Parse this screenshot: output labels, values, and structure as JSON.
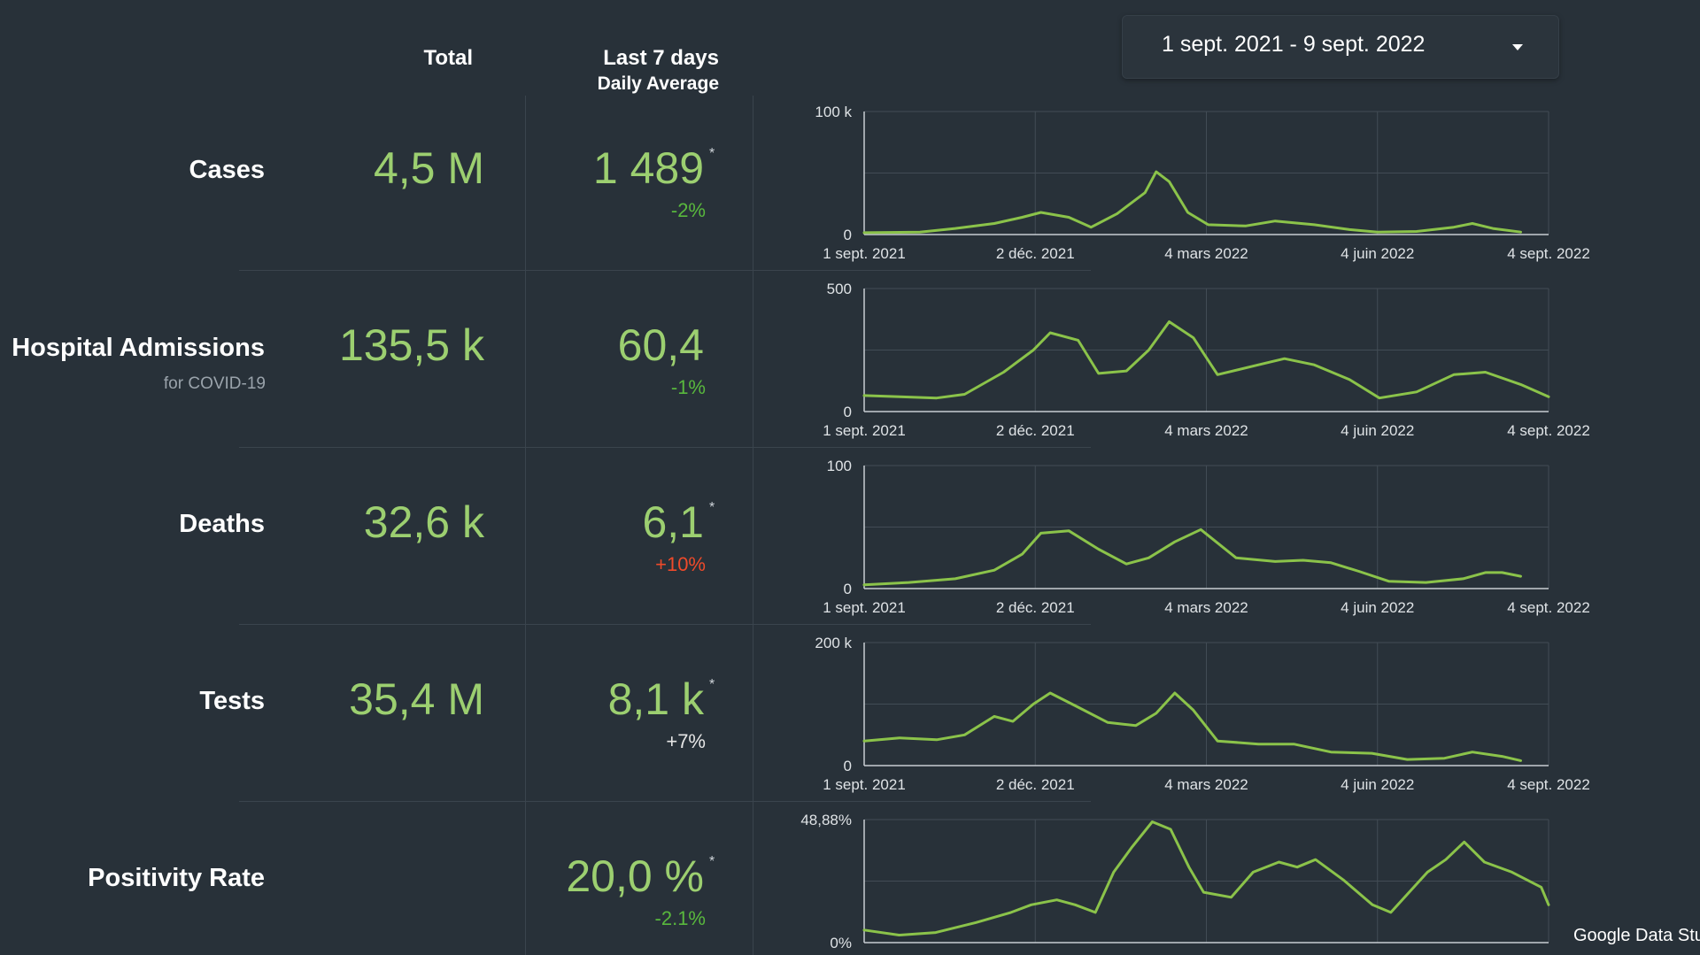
{
  "date_range": {
    "label": "1 sept. 2021 - 9 sept. 2022"
  },
  "columns": {
    "total": "Total",
    "last7": "Last 7 days",
    "last7_sub": "Daily Average"
  },
  "rows": [
    {
      "label": "Cases",
      "sublabel": "",
      "total": "4,5 M",
      "avg": "1 489",
      "star": "*",
      "change": "-2%",
      "change_color": "#59b83d"
    },
    {
      "label": "Hospital Admissions",
      "sublabel": "for COVID-19",
      "total": "135,5 k",
      "avg": "60,4",
      "star": "",
      "change": "-1%",
      "change_color": "#59b83d"
    },
    {
      "label": "Deaths",
      "sublabel": "",
      "total": "32,6 k",
      "avg": "6,1",
      "star": "*",
      "change": "+10%",
      "change_color": "#ef4a2a"
    },
    {
      "label": "Tests",
      "sublabel": "",
      "total": "35,4 M",
      "avg": "8,1 k",
      "star": "*",
      "change": "+7%",
      "change_color": "#e6e6e6"
    },
    {
      "label": "Positivity Rate",
      "sublabel": "",
      "total": "",
      "avg": "20,0 %",
      "star": "*",
      "change": "-2.1%",
      "change_color": "#59b83d"
    }
  ],
  "footer": {
    "brand": "Google Data Stu"
  },
  "chart_data": [
    {
      "type": "line",
      "series_name": "Cases",
      "color": "#8bc34a",
      "x_ticks": [
        "1 sept. 2021",
        "2 déc. 2021",
        "4 mars 2022",
        "4 juin 2022",
        "4 sept. 2022"
      ],
      "y_ticks": [
        "0",
        "100 k"
      ],
      "ylim": [
        0,
        100000
      ],
      "xlim": [
        "2021-09-01",
        "2022-09-04"
      ],
      "x": [
        "2021-09-01",
        "2021-10-01",
        "2021-10-20",
        "2021-11-10",
        "2021-11-25",
        "2021-12-05",
        "2021-12-20",
        "2022-01-01",
        "2022-01-15",
        "2022-01-30",
        "2022-02-05",
        "2022-02-12",
        "2022-02-22",
        "2022-03-05",
        "2022-03-25",
        "2022-04-10",
        "2022-05-01",
        "2022-05-20",
        "2022-06-04",
        "2022-06-25",
        "2022-07-15",
        "2022-07-25",
        "2022-08-05",
        "2022-08-20"
      ],
      "y": [
        1500,
        2000,
        5000,
        9000,
        14000,
        18000,
        14000,
        6000,
        17000,
        34000,
        51000,
        43000,
        18000,
        8000,
        7000,
        11000,
        8000,
        4000,
        2000,
        2500,
        6000,
        9000,
        5000,
        2000
      ]
    },
    {
      "type": "line",
      "series_name": "Hospital Admissions",
      "color": "#8bc34a",
      "x_ticks": [
        "1 sept. 2021",
        "2 déc. 2021",
        "4 mars 2022",
        "4 juin 2022",
        "4 sept. 2022"
      ],
      "y_ticks": [
        "0",
        "500"
      ],
      "ylim": [
        0,
        500
      ],
      "xlim": [
        "2021-09-01",
        "2022-09-04"
      ],
      "x": [
        "2021-09-01",
        "2021-09-20",
        "2021-10-10",
        "2021-10-25",
        "2021-11-15",
        "2021-12-01",
        "2021-12-10",
        "2021-12-25",
        "2022-01-05",
        "2022-01-20",
        "2022-02-01",
        "2022-02-12",
        "2022-02-25",
        "2022-03-10",
        "2022-04-01",
        "2022-04-15",
        "2022-05-01",
        "2022-05-20",
        "2022-06-05",
        "2022-06-25",
        "2022-07-15",
        "2022-08-01",
        "2022-08-20",
        "2022-09-04"
      ],
      "y": [
        65,
        60,
        55,
        70,
        160,
        250,
        320,
        290,
        155,
        165,
        250,
        365,
        300,
        150,
        190,
        215,
        190,
        130,
        55,
        80,
        150,
        160,
        110,
        60
      ]
    },
    {
      "type": "line",
      "series_name": "Deaths",
      "color": "#8bc34a",
      "x_ticks": [
        "1 sept. 2021",
        "2 déc. 2021",
        "4 mars 2022",
        "4 juin 2022",
        "4 sept. 2022"
      ],
      "y_ticks": [
        "0",
        "100"
      ],
      "ylim": [
        0,
        100
      ],
      "xlim": [
        "2021-09-01",
        "2022-09-04"
      ],
      "x": [
        "2021-09-01",
        "2021-09-25",
        "2021-10-20",
        "2021-11-10",
        "2021-11-25",
        "2021-12-05",
        "2021-12-20",
        "2022-01-05",
        "2022-01-20",
        "2022-02-01",
        "2022-02-15",
        "2022-03-01",
        "2022-03-20",
        "2022-04-10",
        "2022-04-25",
        "2022-05-10",
        "2022-05-25",
        "2022-06-10",
        "2022-06-30",
        "2022-07-20",
        "2022-08-01",
        "2022-08-10",
        "2022-08-20"
      ],
      "y": [
        3,
        5,
        8,
        15,
        28,
        45,
        47,
        32,
        20,
        25,
        38,
        48,
        25,
        22,
        23,
        21,
        14,
        6,
        5,
        8,
        13,
        13,
        10
      ]
    },
    {
      "type": "line",
      "series_name": "Tests",
      "color": "#8bc34a",
      "x_ticks": [
        "1 sept. 2021",
        "2 déc. 2021",
        "4 mars 2022",
        "4 juin 2022",
        "4 sept. 2022"
      ],
      "y_ticks": [
        "0",
        "200 k"
      ],
      "ylim": [
        0,
        200000
      ],
      "xlim": [
        "2021-09-01",
        "2022-09-04"
      ],
      "x": [
        "2021-09-01",
        "2021-09-20",
        "2021-10-10",
        "2021-10-25",
        "2021-11-10",
        "2021-11-20",
        "2021-12-01",
        "2021-12-10",
        "2021-12-25",
        "2022-01-10",
        "2022-01-25",
        "2022-02-05",
        "2022-02-15",
        "2022-02-25",
        "2022-03-10",
        "2022-04-01",
        "2022-04-20",
        "2022-05-10",
        "2022-06-01",
        "2022-06-20",
        "2022-07-10",
        "2022-07-25",
        "2022-08-10",
        "2022-08-20"
      ],
      "y": [
        40000,
        45000,
        42000,
        50000,
        80000,
        72000,
        100000,
        118000,
        95000,
        70000,
        65000,
        85000,
        118000,
        90000,
        40000,
        35000,
        35000,
        22000,
        20000,
        10000,
        12000,
        22000,
        15000,
        8000
      ]
    },
    {
      "type": "line",
      "series_name": "Positivity Rate",
      "color": "#8bc34a",
      "x_ticks": [],
      "y_ticks": [
        "0%",
        "48,88%"
      ],
      "ylim": [
        0,
        48.88
      ],
      "xlim": [
        "2021-09-01",
        "2022-09-09"
      ],
      "x": [
        "2021-09-01",
        "2021-09-20",
        "2021-10-10",
        "2021-11-01",
        "2021-11-20",
        "2021-12-01",
        "2021-12-15",
        "2021-12-25",
        "2022-01-05",
        "2022-01-15",
        "2022-01-25",
        "2022-02-05",
        "2022-02-15",
        "2022-02-25",
        "2022-03-05",
        "2022-03-20",
        "2022-04-01",
        "2022-04-15",
        "2022-04-25",
        "2022-05-05",
        "2022-05-20",
        "2022-06-05",
        "2022-06-15",
        "2022-06-25",
        "2022-07-05",
        "2022-07-15",
        "2022-07-25",
        "2022-08-05",
        "2022-08-20",
        "2022-09-05",
        "2022-09-09"
      ],
      "y": [
        5,
        3,
        4,
        8,
        12,
        15,
        17,
        15,
        12,
        28,
        38,
        48,
        45,
        30,
        20,
        18,
        28,
        32,
        30,
        33,
        25,
        15,
        12,
        20,
        28,
        33,
        40,
        32,
        28,
        22,
        15
      ]
    }
  ]
}
